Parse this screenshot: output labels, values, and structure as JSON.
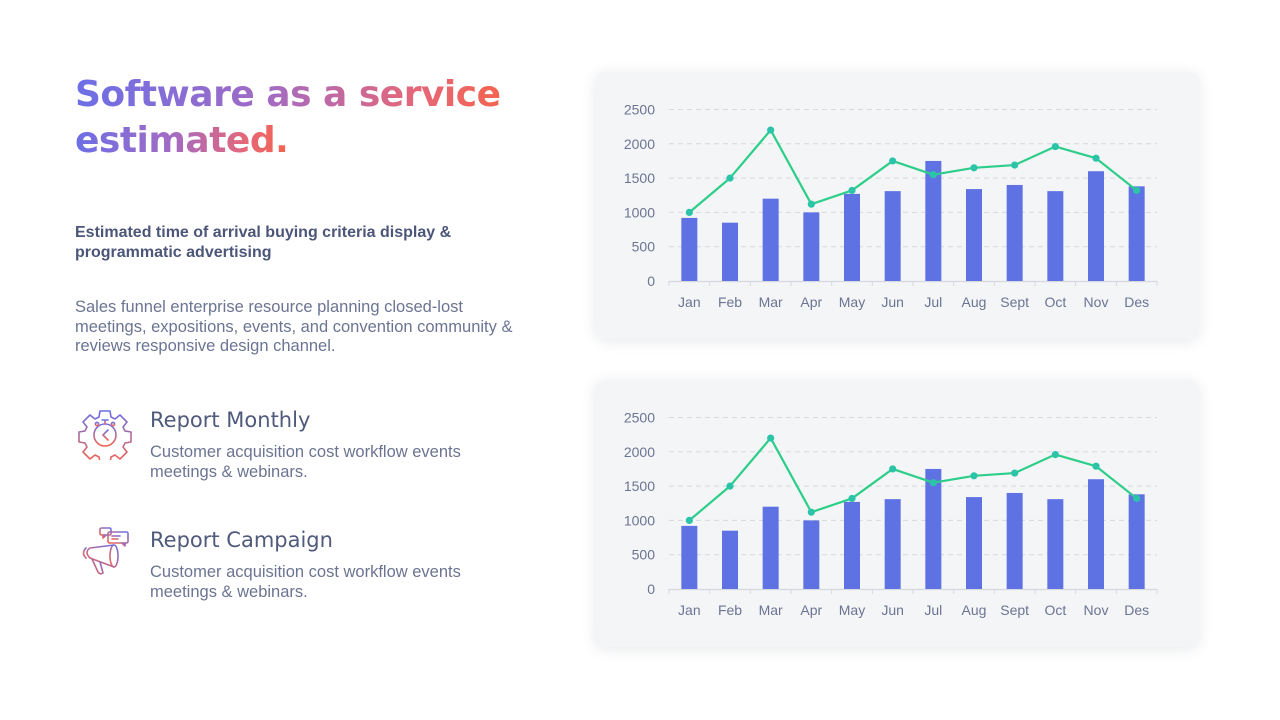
{
  "header": {
    "title_line1": "Software as a service",
    "title_line2": "estimated.",
    "subtitle": "Estimated time of arrival buying criteria display & programmatic advertising",
    "body": "Sales funnel  enterprise resource planning closed-lost meetings, expositions, events, and convention community & reviews responsive design channel."
  },
  "reports": [
    {
      "icon": "gear-stopwatch-icon",
      "title": "Report Monthly",
      "description": "Customer acquisition cost workflow events meetings & webinars."
    },
    {
      "icon": "megaphone-chat-icon",
      "title": "Report Campaign",
      "description": "Customer acquisition cost workflow events meetings & webinars."
    }
  ],
  "colors": {
    "bar": "#5e72e4",
    "line": "#2dce89",
    "marker": "#2bc4a8",
    "grid": "#d5d8de",
    "gradient_start": "#6c6fe6",
    "gradient_end": "#f4644f"
  },
  "chart_data": [
    {
      "type": "bar",
      "title": "",
      "xlabel": "",
      "ylabel": "",
      "categories": [
        "Jan",
        "Feb",
        "Mar",
        "Apr",
        "May",
        "Jun",
        "Jul",
        "Aug",
        "Sept",
        "Oct",
        "Nov",
        "Des"
      ],
      "series": [
        {
          "name": "Bars",
          "kind": "bar",
          "values": [
            920,
            850,
            1200,
            1000,
            1270,
            1310,
            1750,
            1340,
            1400,
            1310,
            1600,
            1380
          ]
        },
        {
          "name": "Line",
          "kind": "line",
          "values": [
            1000,
            1500,
            2200,
            1120,
            1320,
            1750,
            1550,
            1650,
            1690,
            1960,
            1790,
            1320
          ]
        }
      ],
      "yticks": [
        0,
        500,
        1000,
        1500,
        2000,
        2500
      ],
      "ylim": [
        0,
        2500
      ],
      "grid": true,
      "legend": "none"
    },
    {
      "type": "bar",
      "title": "",
      "xlabel": "",
      "ylabel": "",
      "categories": [
        "Jan",
        "Feb",
        "Mar",
        "Apr",
        "May",
        "Jun",
        "Jul",
        "Aug",
        "Sept",
        "Oct",
        "Nov",
        "Des"
      ],
      "series": [
        {
          "name": "Bars",
          "kind": "bar",
          "values": [
            920,
            850,
            1200,
            1000,
            1270,
            1310,
            1750,
            1340,
            1400,
            1310,
            1600,
            1380
          ]
        },
        {
          "name": "Line",
          "kind": "line",
          "values": [
            1000,
            1500,
            2200,
            1120,
            1320,
            1750,
            1550,
            1650,
            1690,
            1960,
            1790,
            1320
          ]
        }
      ],
      "yticks": [
        0,
        500,
        1000,
        1500,
        2000,
        2500
      ],
      "ylim": [
        0,
        2500
      ],
      "grid": true,
      "legend": "none"
    }
  ]
}
